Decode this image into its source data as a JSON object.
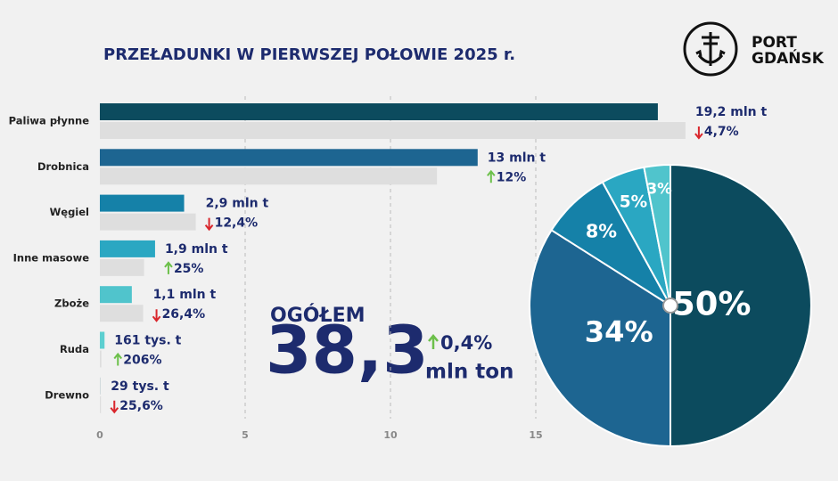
{
  "chart_data": [
    {
      "type": "bar",
      "title": "PRZEŁADUNKI W PIERWSZEJ POŁOWIE 2025 r.",
      "categories": [
        "Paliwa płynne",
        "Drobnica",
        "Węgiel",
        "Inne masowe",
        "Zboże",
        "Ruda",
        "Drewno"
      ],
      "values": [
        19.2,
        13,
        2.9,
        1.9,
        1.1,
        0.161,
        0.029
      ],
      "value_labels": [
        "19,2 mln t",
        "13 mln t",
        "2,9 mln t",
        "1,9 mln t",
        "1,1 mln t",
        "161 tys. t",
        "29 tys. t"
      ],
      "colors": [
        "#0c4b5e",
        "#1d6591",
        "#1581a8",
        "#2aa7c2",
        "#50c4cc",
        "#5ccfd0",
        "#cfd8dc"
      ],
      "previous_values": [
        20.15,
        11.6,
        3.3,
        1.52,
        1.49,
        0.053,
        0.039
      ],
      "previous_color": "#dedede",
      "changes": [
        -4.7,
        12,
        -12.4,
        25,
        -26.4,
        206,
        -25.6
      ],
      "change_labels": [
        "4,7%",
        "12%",
        "12,4%",
        "25%",
        "26,4%",
        "206%",
        "25,6%"
      ],
      "up_color": "#6cc04a",
      "down_color": "#d9262c",
      "xlim": [
        0,
        20
      ],
      "xticks": [
        0,
        5,
        10,
        15
      ],
      "grid": true
    },
    {
      "type": "pie",
      "values": [
        50,
        34,
        8,
        5,
        3
      ],
      "value_labels": [
        "50%",
        "34%",
        "8%",
        "5%",
        "3%"
      ],
      "colors": [
        "#0c4b5e",
        "#1d6591",
        "#1581a8",
        "#2aa7c2",
        "#50c4cc"
      ]
    }
  ],
  "summary": {
    "label": "OGÓŁEM",
    "total": "38,3",
    "change": "0,4%",
    "unit": "mln ton"
  },
  "logo": {
    "line1": "PORT",
    "line2": "GDAŃSK"
  }
}
